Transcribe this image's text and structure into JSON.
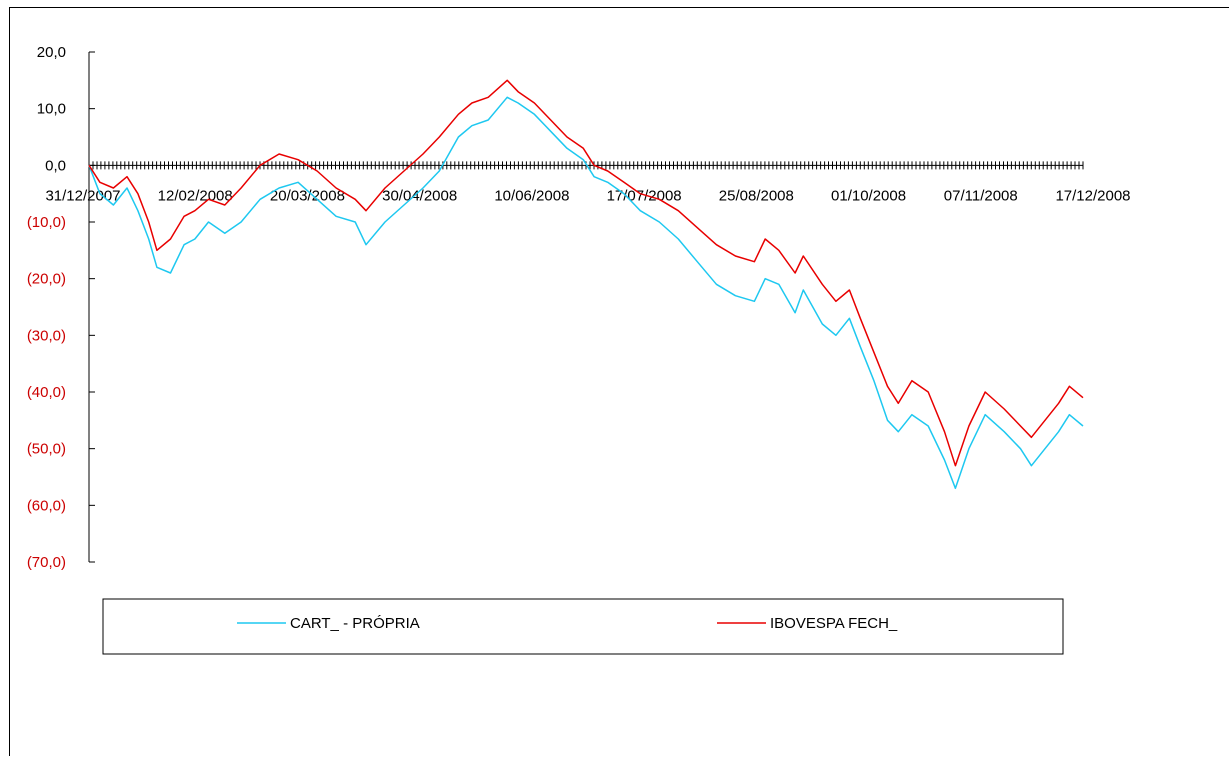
{
  "chart_data": {
    "type": "line",
    "x_tick_labels": [
      "31/12/2007",
      "12/02/2008",
      "20/03/2008",
      "30/04/2008",
      "10/06/2008",
      "17/07/2008",
      "25/08/2008",
      "01/10/2008",
      "07/11/2008",
      "17/12/2008"
    ],
    "y_tick_labels": [
      "20,0",
      "10,0",
      "0,0",
      "(10,0)",
      "(20,0)",
      "(30,0)",
      "(40,0)",
      "(50,0)",
      "(60,0)",
      "(70,0)"
    ],
    "y_tick_values": [
      20,
      10,
      0,
      -10,
      -20,
      -30,
      -40,
      -50,
      -60,
      -70
    ],
    "ylim": [
      -70,
      20
    ],
    "xlim": [
      "2007-12-31",
      "2008-12-31"
    ],
    "grid": false,
    "legend_position": "bottom",
    "colors": {
      "positive_tick": "#000000",
      "negative_tick": "#cc0000"
    },
    "series": [
      {
        "name": "CART_ - PRÓPRIA",
        "color": "#1ec8f0",
        "points": [
          [
            "2007-12-31",
            0
          ],
          [
            "2008-01-04",
            -5
          ],
          [
            "2008-01-09",
            -7
          ],
          [
            "2008-01-14",
            -4
          ],
          [
            "2008-01-18",
            -8
          ],
          [
            "2008-01-22",
            -13
          ],
          [
            "2008-01-25",
            -18
          ],
          [
            "2008-01-30",
            -19
          ],
          [
            "2008-02-04",
            -14
          ],
          [
            "2008-02-08",
            -13
          ],
          [
            "2008-02-13",
            -10
          ],
          [
            "2008-02-19",
            -12
          ],
          [
            "2008-02-25",
            -10
          ],
          [
            "2008-03-03",
            -6
          ],
          [
            "2008-03-10",
            -4
          ],
          [
            "2008-03-17",
            -3
          ],
          [
            "2008-03-24",
            -6
          ],
          [
            "2008-03-31",
            -9
          ],
          [
            "2008-04-07",
            -10
          ],
          [
            "2008-04-11",
            -14
          ],
          [
            "2008-04-18",
            -10
          ],
          [
            "2008-04-25",
            -7
          ],
          [
            "2008-05-02",
            -4
          ],
          [
            "2008-05-08",
            -1
          ],
          [
            "2008-05-15",
            5
          ],
          [
            "2008-05-20",
            7
          ],
          [
            "2008-05-26",
            8
          ],
          [
            "2008-06-02",
            12
          ],
          [
            "2008-06-06",
            11
          ],
          [
            "2008-06-12",
            9
          ],
          [
            "2008-06-18",
            6
          ],
          [
            "2008-06-24",
            3
          ],
          [
            "2008-06-30",
            1
          ],
          [
            "2008-07-04",
            -2
          ],
          [
            "2008-07-09",
            -3
          ],
          [
            "2008-07-15",
            -5
          ],
          [
            "2008-07-21",
            -8
          ],
          [
            "2008-07-28",
            -10
          ],
          [
            "2008-08-04",
            -13
          ],
          [
            "2008-08-11",
            -17
          ],
          [
            "2008-08-18",
            -21
          ],
          [
            "2008-08-25",
            -23
          ],
          [
            "2008-09-01",
            -24
          ],
          [
            "2008-09-05",
            -20
          ],
          [
            "2008-09-10",
            -21
          ],
          [
            "2008-09-16",
            -26
          ],
          [
            "2008-09-19",
            -22
          ],
          [
            "2008-09-26",
            -28
          ],
          [
            "2008-10-01",
            -30
          ],
          [
            "2008-10-06",
            -27
          ],
          [
            "2008-10-10",
            -32
          ],
          [
            "2008-10-15",
            -38
          ],
          [
            "2008-10-20",
            -45
          ],
          [
            "2008-10-24",
            -47
          ],
          [
            "2008-10-29",
            -44
          ],
          [
            "2008-11-04",
            -46
          ],
          [
            "2008-11-10",
            -52
          ],
          [
            "2008-11-14",
            -57
          ],
          [
            "2008-11-19",
            -50
          ],
          [
            "2008-11-25",
            -44
          ],
          [
            "2008-12-02",
            -47
          ],
          [
            "2008-12-08",
            -50
          ],
          [
            "2008-12-12",
            -53
          ],
          [
            "2008-12-17",
            -50
          ],
          [
            "2008-12-22",
            -47
          ],
          [
            "2008-12-26",
            -44
          ],
          [
            "2008-12-31",
            -46
          ]
        ]
      },
      {
        "name": "IBOVESPA FECH_",
        "color": "#e80000",
        "points": [
          [
            "2007-12-31",
            0
          ],
          [
            "2008-01-04",
            -3
          ],
          [
            "2008-01-09",
            -4
          ],
          [
            "2008-01-14",
            -2
          ],
          [
            "2008-01-18",
            -5
          ],
          [
            "2008-01-22",
            -10
          ],
          [
            "2008-01-25",
            -15
          ],
          [
            "2008-01-30",
            -13
          ],
          [
            "2008-02-04",
            -9
          ],
          [
            "2008-02-08",
            -8
          ],
          [
            "2008-02-13",
            -6
          ],
          [
            "2008-02-19",
            -7
          ],
          [
            "2008-02-25",
            -4
          ],
          [
            "2008-03-03",
            0
          ],
          [
            "2008-03-10",
            2
          ],
          [
            "2008-03-17",
            1
          ],
          [
            "2008-03-24",
            -1
          ],
          [
            "2008-03-31",
            -4
          ],
          [
            "2008-04-07",
            -6
          ],
          [
            "2008-04-11",
            -8
          ],
          [
            "2008-04-18",
            -4
          ],
          [
            "2008-04-25",
            -1
          ],
          [
            "2008-05-02",
            2
          ],
          [
            "2008-05-08",
            5
          ],
          [
            "2008-05-15",
            9
          ],
          [
            "2008-05-20",
            11
          ],
          [
            "2008-05-26",
            12
          ],
          [
            "2008-06-02",
            15
          ],
          [
            "2008-06-06",
            13
          ],
          [
            "2008-06-12",
            11
          ],
          [
            "2008-06-18",
            8
          ],
          [
            "2008-06-24",
            5
          ],
          [
            "2008-06-30",
            3
          ],
          [
            "2008-07-04",
            0
          ],
          [
            "2008-07-09",
            -1
          ],
          [
            "2008-07-15",
            -3
          ],
          [
            "2008-07-21",
            -5
          ],
          [
            "2008-07-28",
            -6
          ],
          [
            "2008-08-04",
            -8
          ],
          [
            "2008-08-11",
            -11
          ],
          [
            "2008-08-18",
            -14
          ],
          [
            "2008-08-25",
            -16
          ],
          [
            "2008-09-01",
            -17
          ],
          [
            "2008-09-05",
            -13
          ],
          [
            "2008-09-10",
            -15
          ],
          [
            "2008-09-16",
            -19
          ],
          [
            "2008-09-19",
            -16
          ],
          [
            "2008-09-26",
            -21
          ],
          [
            "2008-10-01",
            -24
          ],
          [
            "2008-10-06",
            -22
          ],
          [
            "2008-10-10",
            -27
          ],
          [
            "2008-10-15",
            -33
          ],
          [
            "2008-10-20",
            -39
          ],
          [
            "2008-10-24",
            -42
          ],
          [
            "2008-10-29",
            -38
          ],
          [
            "2008-11-04",
            -40
          ],
          [
            "2008-11-10",
            -47
          ],
          [
            "2008-11-14",
            -53
          ],
          [
            "2008-11-19",
            -46
          ],
          [
            "2008-11-25",
            -40
          ],
          [
            "2008-12-02",
            -43
          ],
          [
            "2008-12-08",
            -46
          ],
          [
            "2008-12-12",
            -48
          ],
          [
            "2008-12-17",
            -45
          ],
          [
            "2008-12-22",
            -42
          ],
          [
            "2008-12-26",
            -39
          ],
          [
            "2008-12-31",
            -41
          ]
        ]
      }
    ]
  }
}
